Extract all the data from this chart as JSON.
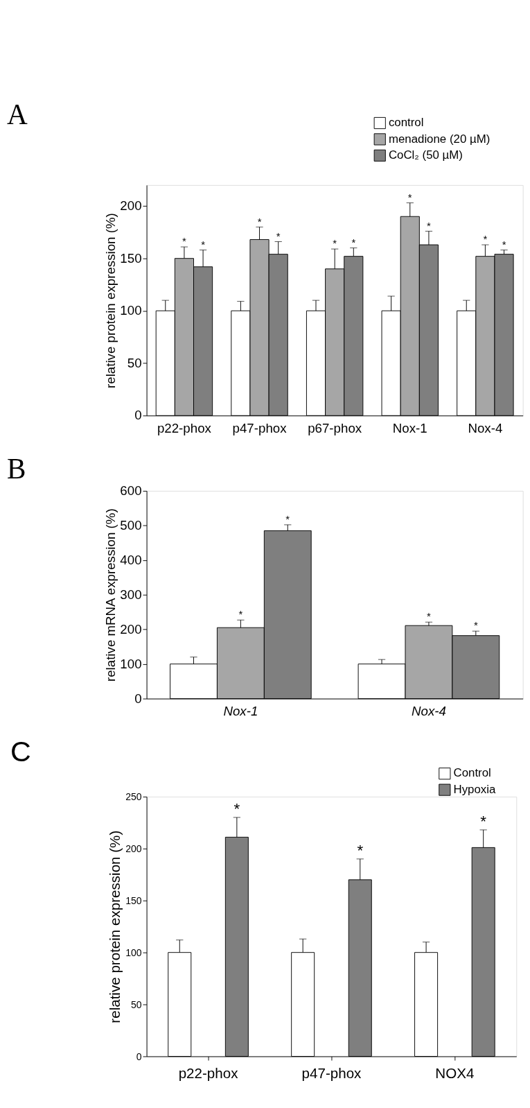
{
  "chart_data": [
    {
      "type": "bar",
      "title": "A",
      "ylabel": "relative protein expression (%)",
      "categories": [
        "p22-phox",
        "p47-phox",
        "p67-phox",
        "Nox-1",
        "Nox-4"
      ],
      "ylim": [
        0,
        220
      ],
      "yticks": [
        0,
        50,
        100,
        150,
        200
      ],
      "legend": "top",
      "grid": false,
      "series": [
        {
          "name": "control",
          "color": "#ffffff",
          "values": [
            100,
            100,
            100,
            100,
            100
          ],
          "errors": [
            10,
            9,
            10,
            14,
            10
          ]
        },
        {
          "name": "menadione (20 µM)",
          "color": "#a6a6a6",
          "values": [
            150,
            168,
            140,
            190,
            152
          ],
          "errors": [
            11,
            12,
            19,
            13,
            11
          ],
          "value_labels": [
            "*",
            "*",
            "*",
            "*",
            "*"
          ]
        },
        {
          "name": "CoCl₂ (50 µM)",
          "color": "#7f7f7f",
          "values": [
            142,
            154,
            152,
            163,
            154
          ],
          "errors": [
            16,
            12,
            8,
            13,
            4
          ],
          "value_labels": [
            "*",
            "*",
            "*",
            "*",
            "*"
          ]
        }
      ]
    },
    {
      "type": "bar",
      "title": "B",
      "ylabel": "relative mRNA expression (%)",
      "categories": [
        "Nox-1",
        "Nox-4"
      ],
      "ylim": [
        0,
        600
      ],
      "yticks": [
        0,
        100,
        200,
        300,
        400,
        500,
        600
      ],
      "legend": false,
      "grid": false,
      "series": [
        {
          "color": "#ffffff",
          "values": [
            100,
            100
          ],
          "errors": [
            20,
            13
          ]
        },
        {
          "color": "#a6a6a6",
          "values": [
            205,
            211
          ],
          "errors": [
            22,
            10
          ],
          "value_labels": [
            "*",
            "*"
          ]
        },
        {
          "color": "#7f7f7f",
          "values": [
            485,
            182
          ],
          "errors": [
            17,
            13
          ],
          "value_labels": [
            "*",
            "*"
          ]
        }
      ]
    },
    {
      "type": "bar",
      "title": "C",
      "ylabel": "relative protein expression (%)",
      "categories": [
        "p22-phox",
        "p47-phox",
        "NOX4"
      ],
      "ylim": [
        0,
        250
      ],
      "yticks": [
        0,
        50,
        100,
        150,
        200,
        250
      ],
      "legend": "top right",
      "grid": false,
      "series": [
        {
          "name": "Control",
          "color": "#ffffff",
          "values": [
            100,
            100,
            100
          ],
          "errors": [
            12,
            13,
            10
          ]
        },
        {
          "name": "Hypoxia",
          "color": "#7f7f7f",
          "values": [
            211,
            170,
            201
          ],
          "errors": [
            19,
            20,
            17
          ],
          "value_labels": [
            "*",
            "*",
            "*"
          ]
        }
      ]
    }
  ]
}
